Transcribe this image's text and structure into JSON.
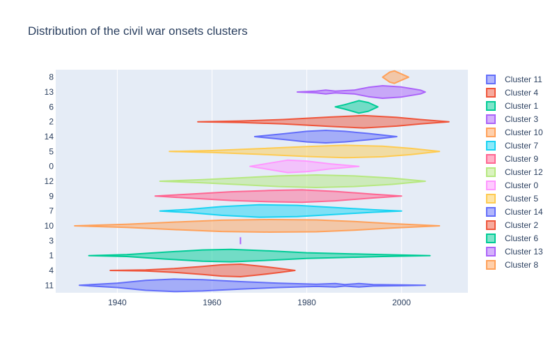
{
  "chart_data": {
    "type": "violin",
    "title": "Distribution of the civil war onsets clusters",
    "xlabel": "",
    "ylabel": "",
    "xlim": [
      1927,
      2014
    ],
    "x_ticks": [
      1940,
      1960,
      1980,
      2000
    ],
    "grid": true,
    "orientation": "horizontal",
    "categories": [
      "11",
      "4",
      "1",
      "3",
      "10",
      "7",
      "9",
      "12",
      "0",
      "5",
      "14",
      "2",
      "6",
      "13",
      "8"
    ],
    "legend_position": "right",
    "series": [
      {
        "name": "Cluster 11",
        "category": "11",
        "color": "#636efa",
        "profile": [
          [
            1932,
            0
          ],
          [
            1940,
            0.35
          ],
          [
            1946,
            0.8
          ],
          [
            1952,
            1.0
          ],
          [
            1958,
            0.9
          ],
          [
            1966,
            0.6
          ],
          [
            1974,
            0.35
          ],
          [
            1982,
            0.18
          ],
          [
            1986,
            0.28
          ],
          [
            1988,
            0.12
          ],
          [
            1991,
            0.28
          ],
          [
            1994,
            0.12
          ],
          [
            2000,
            0.06
          ],
          [
            2005,
            0
          ]
        ]
      },
      {
        "name": "Cluster 4",
        "category": "4",
        "color": "#ef553b",
        "profile": [
          [
            1938.5,
            0
          ],
          [
            1946,
            0.08
          ],
          [
            1952,
            0.3
          ],
          [
            1958,
            0.65
          ],
          [
            1962,
            0.9
          ],
          [
            1966,
            1.0
          ],
          [
            1970,
            0.7
          ],
          [
            1974,
            0.35
          ],
          [
            1977.5,
            0
          ]
        ]
      },
      {
        "name": "Cluster 1",
        "category": "1",
        "color": "#00cc96",
        "profile": [
          [
            1934,
            0
          ],
          [
            1942,
            0.15
          ],
          [
            1950,
            0.55
          ],
          [
            1958,
            0.9
          ],
          [
            1964,
            1.0
          ],
          [
            1972,
            0.75
          ],
          [
            1980,
            0.45
          ],
          [
            1988,
            0.3
          ],
          [
            1996,
            0.15
          ],
          [
            2006,
            0
          ]
        ]
      },
      {
        "name": "Cluster 3",
        "category": "3",
        "color": "#ab63fa",
        "profile": [
          [
            1966,
            0
          ],
          [
            1966,
            0.5
          ],
          [
            1966,
            0
          ]
        ]
      },
      {
        "name": "Cluster 10",
        "category": "10",
        "color": "#ffa15a",
        "profile": [
          [
            1931,
            0
          ],
          [
            1942,
            0.25
          ],
          [
            1952,
            0.6
          ],
          [
            1962,
            0.9
          ],
          [
            1972,
            1.0
          ],
          [
            1982,
            0.95
          ],
          [
            1990,
            0.7
          ],
          [
            1998,
            0.35
          ],
          [
            2008,
            0
          ]
        ]
      },
      {
        "name": "Cluster 7",
        "category": "7",
        "color": "#19d3f3",
        "profile": [
          [
            1949,
            0
          ],
          [
            1955,
            0.25
          ],
          [
            1962,
            0.7
          ],
          [
            1970,
            1.0
          ],
          [
            1978,
            0.9
          ],
          [
            1986,
            0.55
          ],
          [
            1994,
            0.2
          ],
          [
            2000,
            0
          ]
        ]
      },
      {
        "name": "Cluster 9",
        "category": "9",
        "color": "#ff6692",
        "profile": [
          [
            1948,
            0
          ],
          [
            1956,
            0.35
          ],
          [
            1964,
            0.7
          ],
          [
            1972,
            0.9
          ],
          [
            1979,
            1.0
          ],
          [
            1986,
            0.75
          ],
          [
            1994,
            0.3
          ],
          [
            2000,
            0
          ]
        ]
      },
      {
        "name": "Cluster 12",
        "category": "12",
        "color": "#b6e880",
        "profile": [
          [
            1949,
            0
          ],
          [
            1958,
            0.25
          ],
          [
            1966,
            0.55
          ],
          [
            1974,
            0.85
          ],
          [
            1982,
            1.0
          ],
          [
            1990,
            0.85
          ],
          [
            1998,
            0.5
          ],
          [
            2005,
            0
          ]
        ]
      },
      {
        "name": "Cluster 0",
        "category": "0",
        "color": "#ff97ff",
        "profile": [
          [
            1968,
            0
          ],
          [
            1972,
            0.5
          ],
          [
            1976,
            1.0
          ],
          [
            1980,
            0.85
          ],
          [
            1985,
            0.4
          ],
          [
            1991,
            0
          ]
        ]
      },
      {
        "name": "Cluster 5",
        "category": "5",
        "color": "#fecb52",
        "profile": [
          [
            1951,
            0
          ],
          [
            1960,
            0.15
          ],
          [
            1970,
            0.45
          ],
          [
            1980,
            0.8
          ],
          [
            1988,
            1.0
          ],
          [
            1996,
            0.85
          ],
          [
            2002,
            0.5
          ],
          [
            2008,
            0
          ]
        ]
      },
      {
        "name": "Cluster 14",
        "category": "14",
        "color": "#636efa",
        "profile": [
          [
            1969,
            0
          ],
          [
            1975,
            0.45
          ],
          [
            1980,
            0.85
          ],
          [
            1984,
            1.0
          ],
          [
            1988,
            0.85
          ],
          [
            1993,
            0.5
          ],
          [
            1999,
            0
          ]
        ]
      },
      {
        "name": "Cluster 2",
        "category": "2",
        "color": "#ef553b",
        "profile": [
          [
            1957,
            0
          ],
          [
            1966,
            0.12
          ],
          [
            1975,
            0.35
          ],
          [
            1985,
            0.75
          ],
          [
            1992,
            1.0
          ],
          [
            1999,
            0.7
          ],
          [
            2004,
            0.35
          ],
          [
            2010,
            0
          ]
        ]
      },
      {
        "name": "Cluster 6",
        "category": "6",
        "color": "#00cc96",
        "profile": [
          [
            1986,
            0
          ],
          [
            1988,
            0.35
          ],
          [
            1991,
            1.0
          ],
          [
            1993,
            0.7
          ],
          [
            1995,
            0
          ]
        ]
      },
      {
        "name": "Cluster 13",
        "category": "13",
        "color": "#ab63fa",
        "profile": [
          [
            1978,
            0
          ],
          [
            1982,
            0.15
          ],
          [
            1984,
            0.3
          ],
          [
            1986,
            0.15
          ],
          [
            1990,
            0.3
          ],
          [
            1993,
            0.75
          ],
          [
            1996,
            1.0
          ],
          [
            2000,
            0.8
          ],
          [
            2004,
            0.3
          ],
          [
            2005,
            0
          ]
        ]
      },
      {
        "name": "Cluster 8",
        "category": "8",
        "color": "#ffa15a",
        "profile": [
          [
            1996,
            0
          ],
          [
            1997.5,
            0.8
          ],
          [
            1998.5,
            1.0
          ],
          [
            2000,
            0.5
          ],
          [
            2001.5,
            0
          ]
        ]
      }
    ]
  }
}
